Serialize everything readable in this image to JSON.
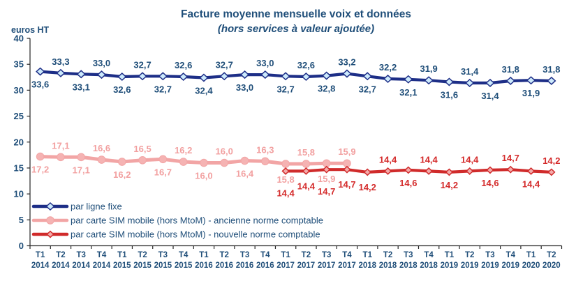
{
  "chart_data": {
    "type": "line",
    "title": "Facture moyenne mensuelle voix et données",
    "subtitle": "(hors services à valeur ajoutée)",
    "ylabel": "euros HT",
    "ylim": [
      0,
      40
    ],
    "yticks": [
      0,
      5,
      10,
      15,
      20,
      25,
      30,
      35,
      40
    ],
    "grid": false,
    "legend_position": "bottom-left-inside",
    "colors": {
      "text_blue": "#1f4e79",
      "axis": "#262626",
      "line_fixed": "#1d2e87",
      "line_old_norm": "#f2a5a5",
      "line_new_norm": "#d02b2b"
    },
    "categories": [
      {
        "q": "T1",
        "year": "2014"
      },
      {
        "q": "T2",
        "year": "2014"
      },
      {
        "q": "T3",
        "year": "2014"
      },
      {
        "q": "T4",
        "year": "2014"
      },
      {
        "q": "T1",
        "year": "2015"
      },
      {
        "q": "T2",
        "year": "2015"
      },
      {
        "q": "T3",
        "year": "2015"
      },
      {
        "q": "T4",
        "year": "2015"
      },
      {
        "q": "T1",
        "year": "2016"
      },
      {
        "q": "T2",
        "year": "2016"
      },
      {
        "q": "T3",
        "year": "2016"
      },
      {
        "q": "T4",
        "year": "2016"
      },
      {
        "q": "T1",
        "year": "2017"
      },
      {
        "q": "T2",
        "year": "2017"
      },
      {
        "q": "T3",
        "year": "2017"
      },
      {
        "q": "T4",
        "year": "2017"
      },
      {
        "q": "T1",
        "year": "2018"
      },
      {
        "q": "T2",
        "year": "2018"
      },
      {
        "q": "T3",
        "year": "2018"
      },
      {
        "q": "T4",
        "year": "2018"
      },
      {
        "q": "T1",
        "year": "2019"
      },
      {
        "q": "T2",
        "year": "2019"
      },
      {
        "q": "T3",
        "year": "2019"
      },
      {
        "q": "T4",
        "year": "2019"
      },
      {
        "q": "T1",
        "year": "2020"
      },
      {
        "q": "T2",
        "year": "2020"
      }
    ],
    "series": [
      {
        "name": "par ligne fixe",
        "color": "#1d2e87",
        "line_width": 4.2,
        "marker": "diamond",
        "marker_fill": "#cdeafc",
        "label_color": "#1f4e79",
        "values": [
          33.6,
          33.3,
          33.1,
          33.0,
          32.6,
          32.7,
          32.7,
          32.6,
          32.4,
          32.7,
          33.0,
          33.0,
          32.7,
          32.6,
          32.8,
          33.2,
          32.7,
          32.2,
          32.1,
          31.9,
          31.6,
          31.4,
          31.4,
          31.8,
          31.9,
          31.8
        ],
        "labels": [
          "33,6",
          "33,3",
          "33,1",
          "33,0",
          "32,6",
          "32,7",
          "32,7",
          "32,6",
          "32,4",
          "32,7",
          "33,0",
          "33,0",
          "32,7",
          "32,6",
          "32,8",
          "33,2",
          "32,7",
          "32,2",
          "32,1",
          "31,9",
          "31,6",
          "31,4",
          "31,4",
          "31,8",
          "31,9",
          "31,8"
        ],
        "label_sides": [
          "below",
          "above",
          "below",
          "above",
          "below",
          "above",
          "below",
          "above",
          "below",
          "above",
          "below",
          "above",
          "below",
          "above",
          "below",
          "above",
          "below",
          "above",
          "below",
          "above",
          "below",
          "above",
          "below",
          "above",
          "below",
          "above"
        ],
        "label_dy": {}
      },
      {
        "name": "par carte SIM mobile (hors MtoM) - ancienne norme comptable",
        "color": "#f2a5a5",
        "line_width": 5,
        "marker": "circle",
        "marker_fill": "#f5b3b3",
        "label_color": "#f2a0a0",
        "values": [
          17.2,
          17.1,
          17.1,
          16.6,
          16.2,
          16.5,
          16.7,
          16.2,
          16.0,
          16.0,
          16.4,
          16.3,
          15.8,
          15.8,
          15.9,
          15.9,
          null,
          null,
          null,
          null,
          null,
          null,
          null,
          null,
          null,
          null
        ],
        "labels": [
          "17,2",
          "17,1",
          "17,1",
          "16,6",
          "16,2",
          "16,5",
          "16,7",
          "16,2",
          "16,0",
          "16,0",
          "16,4",
          "16,3",
          "15,8",
          "15,8",
          "15,9",
          "15,9",
          null,
          null,
          null,
          null,
          null,
          null,
          null,
          null,
          null,
          null
        ],
        "label_sides": [
          "below",
          "above",
          "below",
          "above",
          "below",
          "above",
          "below",
          "above",
          "below",
          "above",
          "below",
          "above",
          "below",
          "above",
          "below",
          "above",
          null,
          null,
          null,
          null,
          null,
          null,
          null,
          null,
          null,
          null
        ],
        "label_dy": {
          "12": 4,
          "14": 4
        }
      },
      {
        "name": "par carte SIM mobile (hors MtoM) - nouvelle norme comptable",
        "color": "#d02b2b",
        "line_width": 4.2,
        "marker": "diamond",
        "marker_fill": "#f4abab",
        "label_color": "#d42b2b",
        "values": [
          null,
          null,
          null,
          null,
          null,
          null,
          null,
          null,
          null,
          null,
          null,
          null,
          14.4,
          14.4,
          14.7,
          14.7,
          14.2,
          14.4,
          14.6,
          14.4,
          14.2,
          14.4,
          14.6,
          14.7,
          14.4,
          14.2
        ],
        "labels": [
          null,
          null,
          null,
          null,
          null,
          null,
          null,
          null,
          null,
          null,
          null,
          null,
          "14,4",
          "14,4",
          "14,7",
          "14,7",
          "14,2",
          "14,4",
          "14,6",
          "14,4",
          "14,2",
          "14,4",
          "14,6",
          "14,7",
          "14,4",
          "14,2"
        ],
        "label_sides": [
          null,
          null,
          null,
          null,
          null,
          null,
          null,
          null,
          null,
          null,
          null,
          null,
          "below",
          "below",
          "below",
          "below",
          "below",
          "above",
          "below",
          "above",
          "below",
          "above",
          "below",
          "above",
          "below",
          "above"
        ],
        "label_dy": {
          "12": 13,
          "13": 3,
          "14": 13,
          "15": 3,
          "16": 3
        }
      }
    ]
  }
}
